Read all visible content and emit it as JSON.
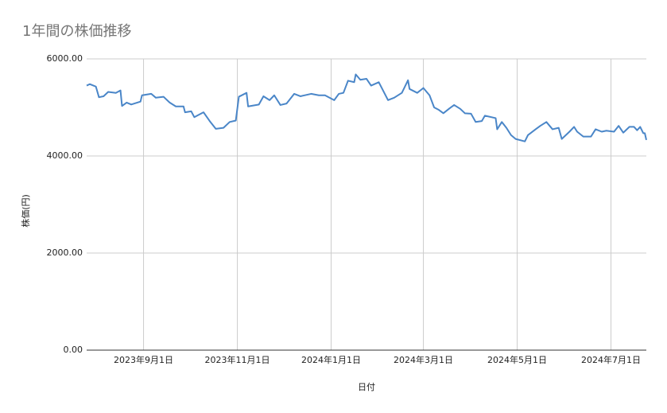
{
  "chart_data": {
    "type": "line",
    "title": "1年間の株価推移",
    "xlabel": "日付",
    "ylabel": "株価(円)",
    "x": [
      "2023-07-26",
      "2023-07-28",
      "2023-08-01",
      "2023-08-03",
      "2023-08-06",
      "2023-08-09",
      "2023-08-14",
      "2023-08-17",
      "2023-08-18",
      "2023-08-21",
      "2023-08-24",
      "2023-08-30",
      "2023-08-31",
      "2023-09-06",
      "2023-09-09",
      "2023-09-14",
      "2023-09-18",
      "2023-09-22",
      "2023-09-27",
      "2023-09-28",
      "2023-10-02",
      "2023-10-04",
      "2023-10-10",
      "2023-10-14",
      "2023-10-18",
      "2023-10-23",
      "2023-10-27",
      "2023-10-31",
      "2023-11-02",
      "2023-11-07",
      "2023-11-08",
      "2023-11-15",
      "2023-11-18",
      "2023-11-22",
      "2023-11-25",
      "2023-11-29",
      "2023-12-03",
      "2023-12-08",
      "2023-12-12",
      "2023-12-19",
      "2023-12-24",
      "2023-12-28",
      "2024-01-03",
      "2024-01-06",
      "2024-01-09",
      "2024-01-12",
      "2024-01-16",
      "2024-01-17",
      "2024-01-20",
      "2024-01-24",
      "2024-01-27",
      "2024-02-01",
      "2024-02-07",
      "2024-02-11",
      "2024-02-16",
      "2024-02-20",
      "2024-02-21",
      "2024-02-26",
      "2024-03-01",
      "2024-03-05",
      "2024-03-08",
      "2024-03-11",
      "2024-03-14",
      "2024-03-18",
      "2024-03-21",
      "2024-03-25",
      "2024-03-28",
      "2024-04-01",
      "2024-04-04",
      "2024-04-08",
      "2024-04-10",
      "2024-04-17",
      "2024-04-18",
      "2024-04-21",
      "2024-04-24",
      "2024-04-27",
      "2024-04-30",
      "2024-05-06",
      "2024-05-08",
      "2024-05-13",
      "2024-05-16",
      "2024-05-20",
      "2024-05-24",
      "2024-05-28",
      "2024-05-30",
      "2024-06-04",
      "2024-06-07",
      "2024-06-09",
      "2024-06-13",
      "2024-06-18",
      "2024-06-21",
      "2024-06-25",
      "2024-06-28",
      "2024-07-03",
      "2024-07-06",
      "2024-07-09",
      "2024-07-13",
      "2024-07-16",
      "2024-07-18",
      "2024-07-20",
      "2024-07-22",
      "2024-07-23",
      "2024-07-24"
    ],
    "values": [
      5450,
      5480,
      5430,
      5210,
      5230,
      5320,
      5300,
      5350,
      5030,
      5100,
      5060,
      5120,
      5250,
      5280,
      5200,
      5220,
      5100,
      5020,
      5020,
      4900,
      4920,
      4800,
      4900,
      4720,
      4560,
      4580,
      4700,
      4730,
      5220,
      5300,
      5020,
      5060,
      5230,
      5150,
      5250,
      5050,
      5080,
      5280,
      5230,
      5280,
      5250,
      5250,
      5150,
      5280,
      5300,
      5550,
      5520,
      5680,
      5570,
      5590,
      5450,
      5520,
      5150,
      5200,
      5300,
      5560,
      5380,
      5300,
      5400,
      5250,
      5000,
      4950,
      4880,
      4980,
      5050,
      4970,
      4880,
      4870,
      4700,
      4720,
      4830,
      4780,
      4550,
      4700,
      4580,
      4430,
      4350,
      4300,
      4430,
      4550,
      4620,
      4700,
      4550,
      4580,
      4350,
      4500,
      4600,
      4500,
      4400,
      4400,
      4550,
      4500,
      4520,
      4500,
      4620,
      4480,
      4600,
      4600,
      4530,
      4600,
      4470,
      4470,
      4330
    ],
    "color": "#4a86c8",
    "xlim": [
      "2023-07-26",
      "2024-07-24"
    ],
    "xticks": [
      {
        "value": "2023-09-01",
        "label": "2023年9月1日"
      },
      {
        "value": "2023-11-01",
        "label": "2023年11月1日"
      },
      {
        "value": "2024-01-01",
        "label": "2024年1月1日"
      },
      {
        "value": "2024-03-01",
        "label": "2024年3月1日"
      },
      {
        "value": "2024-05-01",
        "label": "2024年5月1日"
      },
      {
        "value": "2024-07-01",
        "label": "2024年7月1日"
      }
    ],
    "ylim": [
      0,
      6000
    ],
    "yticks": [
      {
        "value": 0,
        "label": "0.00"
      },
      {
        "value": 2000,
        "label": "2000.00"
      },
      {
        "value": 4000,
        "label": "4000.00"
      },
      {
        "value": 6000,
        "label": "6000.00"
      }
    ],
    "grid": true
  }
}
